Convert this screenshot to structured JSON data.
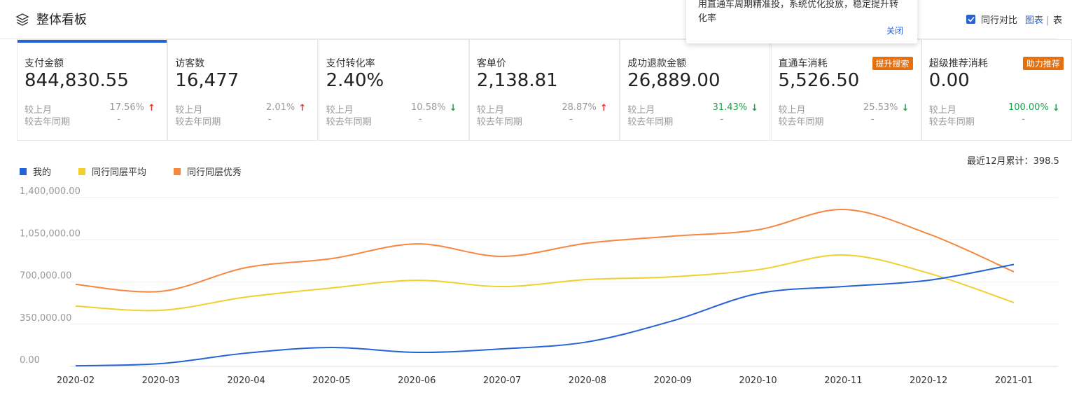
{
  "header": {
    "title": "整体看板"
  },
  "tooltip": {
    "lines": [
      "用直通车周期精准投，系统优化投放，稳定提升转",
      "化率"
    ],
    "close": "关闭"
  },
  "toolbar": {
    "compare": "同行对比",
    "chart": "图表",
    "sep": "|",
    "table": "表"
  },
  "cards": [
    {
      "title": "支付金额",
      "value": "844,830.55",
      "mom_label": "较上月",
      "mom": "17.56%",
      "trend": "up",
      "yoy_label": "较去年同期",
      "yoy": "-"
    },
    {
      "title": "访客数",
      "value": "16,477",
      "mom_label": "较上月",
      "mom": "2.01%",
      "trend": "up",
      "yoy_label": "较去年同期",
      "yoy": "-"
    },
    {
      "title": "支付转化率",
      "value": "2.40%",
      "mom_label": "较上月",
      "mom": "10.58%",
      "trend": "down",
      "yoy_label": "较去年同期",
      "yoy": "-"
    },
    {
      "title": "客单价",
      "value": "2,138.81",
      "mom_label": "较上月",
      "mom": "28.87%",
      "trend": "up",
      "yoy_label": "较去年同期",
      "yoy": "-"
    },
    {
      "title": "成功退款金额",
      "value": "26,889.00",
      "mom_label": "较上月",
      "mom": "31.43%",
      "trend": "down",
      "mom_color": "#1aa34a",
      "yoy_label": "较去年同期",
      "yoy": "-"
    },
    {
      "title": "直通车消耗",
      "value": "5,526.50",
      "badge": "提升搜索",
      "mom_label": "较上月",
      "mom": "25.53%",
      "trend": "down",
      "yoy_label": "较去年同期",
      "yoy": "-"
    },
    {
      "title": "超级推荐消耗",
      "value": "0.00",
      "badge": "助力推荐",
      "mom_label": "较上月",
      "mom": "100.00%",
      "trend": "down",
      "mom_color": "#1aa34a",
      "yoy_label": "较去年同期",
      "yoy": "-"
    }
  ],
  "chart_data": {
    "type": "line",
    "summary": "最近12月累计：398.5",
    "categories": [
      "2020-02",
      "2020-03",
      "2020-04",
      "2020-05",
      "2020-06",
      "2020-07",
      "2020-08",
      "2020-09",
      "2020-10",
      "2020-11",
      "2020-12",
      "2021-01"
    ],
    "series": [
      {
        "name": "我的",
        "color": "#2563d6",
        "values": [
          5000,
          23000,
          110000,
          157000,
          116000,
          145000,
          203000,
          378000,
          604000,
          662000,
          714000,
          845000
        ]
      },
      {
        "name": "同行同层平均",
        "color": "#f2cf2e",
        "values": [
          500000,
          465000,
          575000,
          650000,
          714000,
          662000,
          720000,
          743000,
          802000,
          924000,
          773000,
          529000
        ]
      },
      {
        "name": "同行同层优秀",
        "color": "#f5873e",
        "values": [
          680000,
          622000,
          819000,
          894000,
          1016000,
          912000,
          1022000,
          1080000,
          1133000,
          1301000,
          1098000,
          784000
        ]
      }
    ],
    "ylim": [
      0,
      1400000
    ],
    "yticks": [
      {
        "value": 0,
        "label": "0.00"
      },
      {
        "value": 350000,
        "label": "350,000.00"
      },
      {
        "value": 700000,
        "label": "700,000.00"
      },
      {
        "value": 1050000,
        "label": "1,050,000.00"
      },
      {
        "value": 1400000,
        "label": "1,400,000.00"
      }
    ],
    "grid": true
  }
}
